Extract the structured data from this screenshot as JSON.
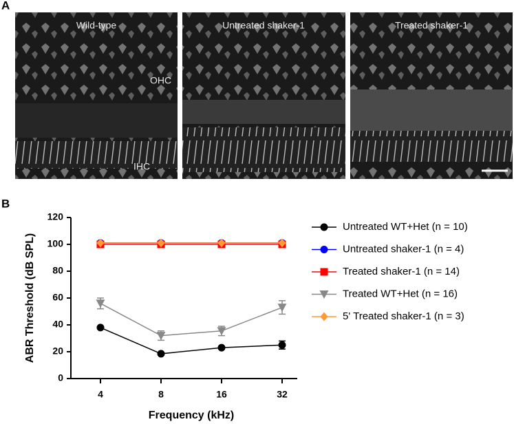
{
  "panels": [
    {
      "label": "A",
      "images": [
        "Wild-type",
        "Untreated shaker-1",
        "Treated shaker-1"
      ],
      "annotations": [
        "OHC",
        "IHC"
      ]
    },
    {
      "label": "B"
    }
  ],
  "chart_data": {
    "type": "line",
    "xlabel": "Frequency (kHz)",
    "ylabel": "ABR Threshold (dB SPL)",
    "categories": [
      "4",
      "8",
      "16",
      "32"
    ],
    "ylim": [
      0,
      120
    ],
    "yticks": [
      0,
      20,
      40,
      60,
      80,
      100,
      120
    ],
    "series": [
      {
        "name": "Untreated WT+Het (n = 10)",
        "color": "#000000",
        "marker": "circle",
        "values": [
          38,
          18.5,
          23,
          25
        ],
        "errors": [
          1,
          1,
          1,
          3
        ]
      },
      {
        "name": "Untreated shaker-1 (n = 4)",
        "color": "#0000ff",
        "marker": "circle",
        "values": [
          101,
          101,
          101,
          101
        ]
      },
      {
        "name": "Treated shaker-1 (n = 14)",
        "color": "#ff0000",
        "marker": "square",
        "values": [
          100,
          100,
          100,
          100
        ]
      },
      {
        "name": "Treated WT+Het (n = 16)",
        "color": "#888888",
        "marker": "triangle-down",
        "values": [
          56,
          32,
          35.5,
          53
        ],
        "errors": [
          4,
          3.5,
          3.5,
          5
        ]
      },
      {
        "name": "5' Treated shaker-1 (n = 3)",
        "color": "#ff9933",
        "marker": "diamond",
        "values": [
          101,
          101,
          101,
          101
        ]
      }
    ]
  }
}
